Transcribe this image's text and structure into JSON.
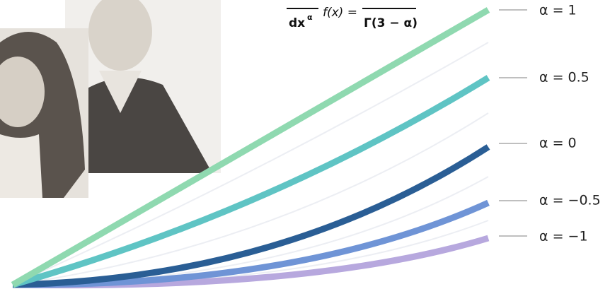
{
  "formula": {
    "denominator": "dx",
    "order": "α",
    "function": "f(x) =",
    "gamma": "Γ(3 − α)"
  },
  "curves": [
    {
      "label": "α = 1"
    },
    {
      "label": "α = 0.5"
    },
    {
      "label": "α = 0"
    },
    {
      "label": "α = −0.5"
    },
    {
      "label": "α = −1"
    }
  ]
}
